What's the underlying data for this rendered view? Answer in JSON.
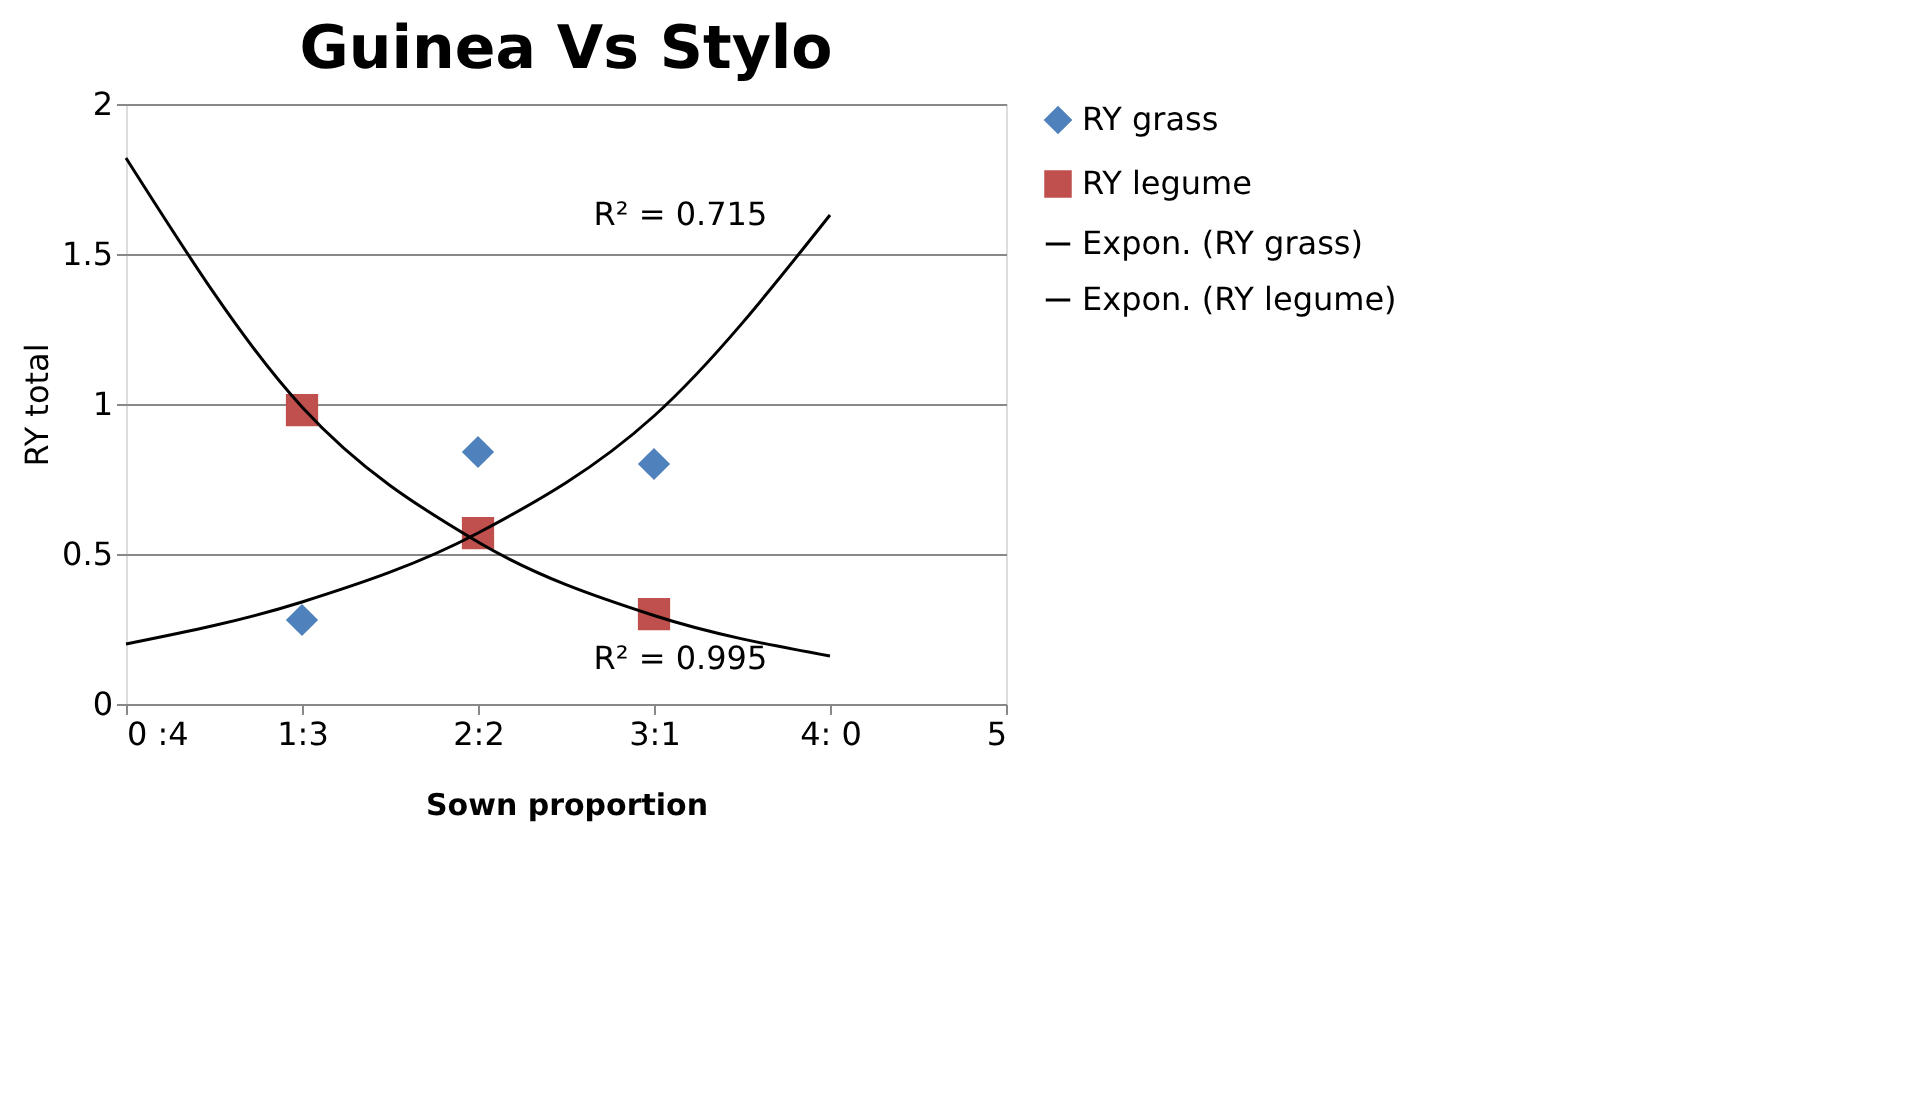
{
  "chart_data": {
    "type": "scatter",
    "title": "Guinea Vs Stylo",
    "xlabel": "Sown proportion",
    "ylabel": "RY total",
    "categories": [
      "0 :4",
      "1:3",
      "2:2",
      "3:1",
      "4: 0",
      "5"
    ],
    "ylim": [
      0,
      2
    ],
    "yticks": [
      0,
      0.5,
      1,
      1.5,
      2
    ],
    "grid": "y",
    "legend": "right",
    "series": [
      {
        "name": "RY grass",
        "marker": "diamond",
        "color": "#4f81bd",
        "values": [
          null,
          0.28,
          0.84,
          0.8,
          null,
          null
        ]
      },
      {
        "name": "RY legume",
        "marker": "square",
        "color": "#c0504d",
        "values": [
          null,
          0.98,
          0.57,
          0.3,
          null,
          null
        ]
      },
      {
        "name": "Expon. (RY grass)",
        "type": "line",
        "line_style": "solid",
        "color": "#000000",
        "values": [
          0.2,
          0.34,
          0.57,
          0.96,
          1.63,
          null
        ]
      },
      {
        "name": "Expon. (RY legume)",
        "type": "line",
        "line_style": "solid",
        "color": "#000000",
        "values": [
          1.82,
          0.99,
          0.54,
          0.295,
          0.16,
          null
        ]
      }
    ],
    "annotations": [
      "R² = 0.715",
      "R² = 0.995"
    ]
  }
}
